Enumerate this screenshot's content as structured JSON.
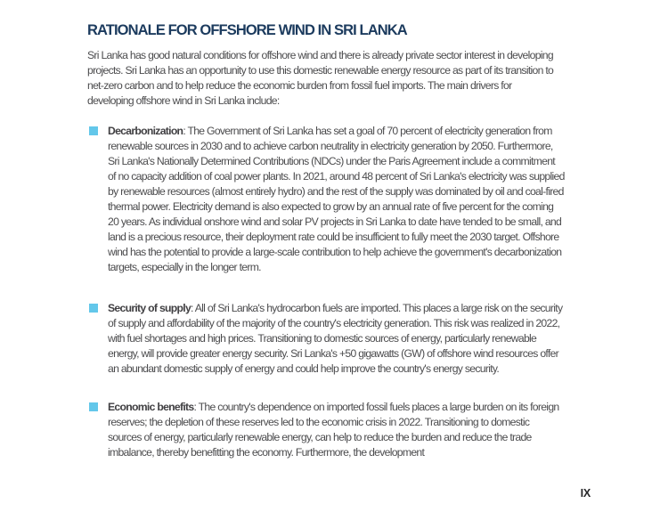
{
  "page": {
    "title": "RATIONALE FOR OFFSHORE WIND IN SRI LANKA",
    "intro": "Sri Lanka has good natural conditions for offshore wind and there is already private sector interest in developing projects. Sri Lanka has an opportunity to use this domestic renewable energy resource as part of its transition to net-zero carbon and to help reduce the economic burden from fossil fuel imports. The main drivers for developing offshore wind in Sri Lanka include:",
    "drivers": [
      {
        "label": "Decarbonization",
        "text": ": The Government of Sri Lanka has set a goal of 70 percent of electricity generation from renewable sources in 2030 and to achieve carbon neutrality in electricity generation by 2050. Furthermore, Sri Lanka's Nationally Determined Contributions (NDCs) under the Paris Agreement include a commitment of no capacity addition of coal power plants. In 2021, around 48 percent of Sri Lanka's electricity was supplied by renewable resources (almost entirely hydro) and the rest of the supply was dominated by oil and coal-fired thermal power. Electricity demand is also expected to grow by an annual rate of five percent for the coming 20 years. As individual onshore wind and solar PV projects in Sri Lanka to date have tended to be small, and land is a precious resource, their deployment rate could be insufficient to fully meet the 2030 target. Offshore wind has the potential to provide a large-scale contribution to help achieve the government's decarbonization targets, especially in the longer term."
      },
      {
        "label": "Security of supply",
        "text": ": All of Sri Lanka's hydrocarbon fuels are imported. This places a large risk on the security of supply and affordability of the majority of the country's electricity generation. This risk was realized in 2022, with fuel shortages and high prices. Transitioning to domestic sources of energy, particularly renewable energy, will provide greater energy security. Sri Lanka's +50 gigawatts (GW) of offshore wind resources offer an abundant domestic supply of energy and could help improve the country's energy security."
      },
      {
        "label": "Economic benefits",
        "text": ": The country's dependence on imported fossil fuels places a large burden on its foreign reserves; the depletion of these reserves led to the economic crisis in 2022. Transitioning to domestic sources of energy, particularly renewable energy, can help to reduce the burden and reduce the trade imbalance, thereby benefitting the economy. Furthermore, the development"
      }
    ],
    "page_number": "IX"
  },
  "colors": {
    "accent": "#63c7ea",
    "title": "#1c3b5e",
    "body": "#4c4c4e",
    "label": "#414043",
    "page_number": "#262628"
  }
}
